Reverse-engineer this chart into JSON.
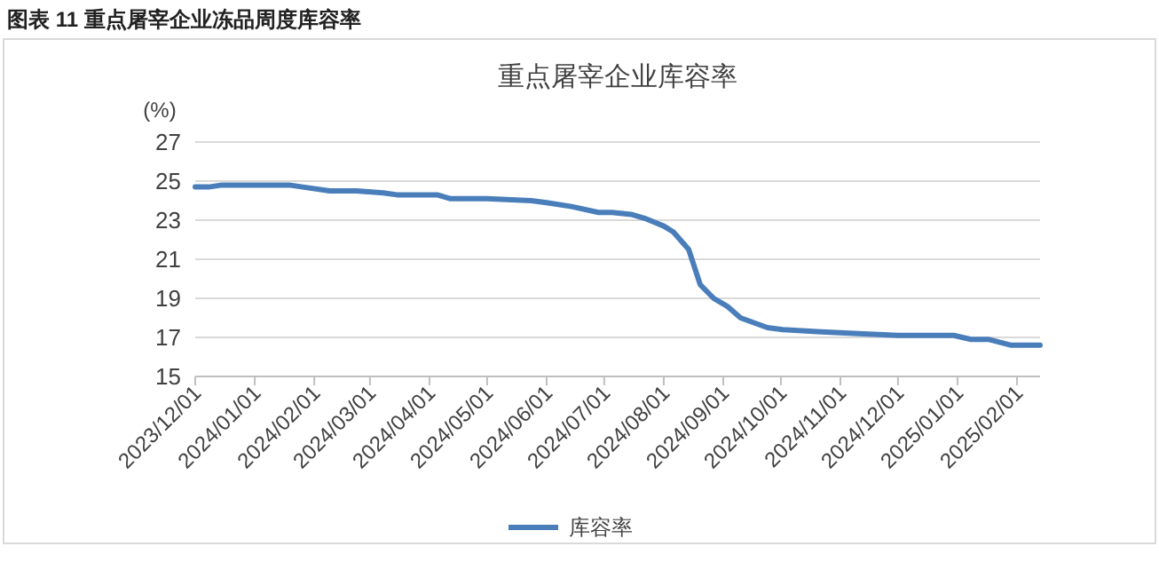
{
  "chart_data": {
    "type": "line",
    "title": "图表 11  重点屠宰企业冻品周度库容率",
    "subtitle": "重点屠宰企业库容率",
    "ylabel": "(%)",
    "x": [
      "2023-12-01",
      "2023-12-08",
      "2023-12-15",
      "2024-01-01",
      "2024-01-19",
      "2024-01-26",
      "2024-02-09",
      "2024-02-23",
      "2024-03-08",
      "2024-03-15",
      "2024-04-05",
      "2024-04-12",
      "2024-05-01",
      "2024-05-24",
      "2024-06-01",
      "2024-06-14",
      "2024-06-28",
      "2024-07-05",
      "2024-07-15",
      "2024-07-22",
      "2024-08-01",
      "2024-08-06",
      "2024-08-14",
      "2024-08-20",
      "2024-08-27",
      "2024-09-03",
      "2024-09-10",
      "2024-09-24",
      "2024-10-02",
      "2024-10-20",
      "2024-11-08",
      "2024-12-01",
      "2024-12-30",
      "2025-01-08",
      "2025-01-17",
      "2025-01-29",
      "2025-02-13"
    ],
    "series": [
      {
        "name": "库容率",
        "color": "#4a7ebb",
        "values": [
          24.7,
          24.7,
          24.8,
          24.8,
          24.8,
          24.7,
          24.5,
          24.5,
          24.4,
          24.3,
          24.3,
          24.1,
          24.1,
          24.0,
          23.9,
          23.7,
          23.4,
          23.4,
          23.3,
          23.1,
          22.7,
          22.4,
          21.5,
          19.7,
          19.0,
          18.6,
          18.0,
          17.5,
          17.4,
          17.3,
          17.2,
          17.1,
          17.1,
          16.9,
          16.9,
          16.6,
          16.6
        ]
      }
    ],
    "xlim": [
      "2023-12-01",
      "2025-02-13"
    ],
    "xticks": [
      {
        "value": "2023-12-01",
        "label": "2023/12/01"
      },
      {
        "value": "2024-01-01",
        "label": "2024/01/01"
      },
      {
        "value": "2024-02-01",
        "label": "2024/02/01"
      },
      {
        "value": "2024-03-01",
        "label": "2024/03/01"
      },
      {
        "value": "2024-04-01",
        "label": "2024/04/01"
      },
      {
        "value": "2024-05-01",
        "label": "2024/05/01"
      },
      {
        "value": "2024-06-01",
        "label": "2024/06/01"
      },
      {
        "value": "2024-07-01",
        "label": "2024/07/01"
      },
      {
        "value": "2024-08-01",
        "label": "2024/08/01"
      },
      {
        "value": "2024-09-01",
        "label": "2024/09/01"
      },
      {
        "value": "2024-10-01",
        "label": "2024/10/01"
      },
      {
        "value": "2024-11-01",
        "label": "2024/11/01"
      },
      {
        "value": "2024-12-01",
        "label": "2024/12/01"
      },
      {
        "value": "2025-01-01",
        "label": "2025/01/01"
      },
      {
        "value": "2025-02-01",
        "label": "2025/02/01"
      }
    ],
    "ylim": [
      15,
      27
    ],
    "yticks": [
      15,
      17,
      19,
      21,
      23,
      25,
      27
    ],
    "grid": "y",
    "legend": "bottom",
    "line_style": "solid",
    "marker": "none"
  }
}
